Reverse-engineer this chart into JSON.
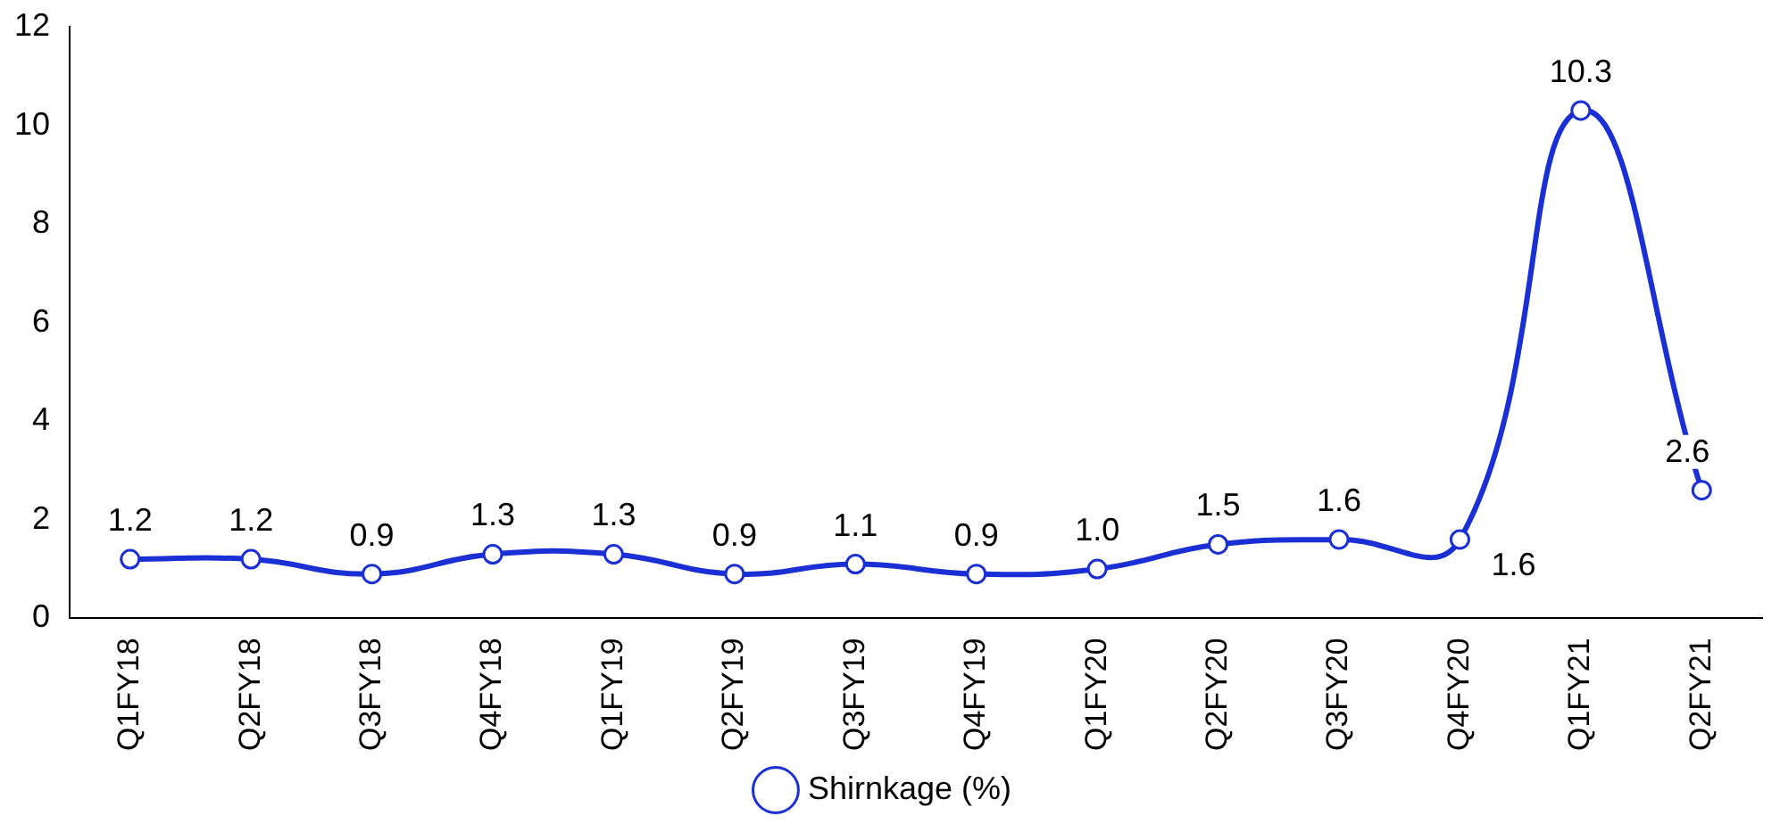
{
  "chart_data": {
    "type": "line",
    "categories": [
      "Q1FY18",
      "Q2FY18",
      "Q3FY18",
      "Q4FY18",
      "Q1FY19",
      "Q2FY19",
      "Q3FY19",
      "Q4FY19",
      "Q1FY20",
      "Q2FY20",
      "Q3FY20",
      "Q4FY20",
      "Q1FY21",
      "Q2FY21"
    ],
    "series": [
      {
        "name": "Shirnkage (%)",
        "color": "#1a2fd4",
        "values": [
          1.2,
          1.2,
          0.9,
          1.3,
          1.3,
          0.9,
          1.1,
          0.9,
          1.0,
          1.5,
          1.6,
          1.6,
          10.3,
          2.6
        ],
        "value_labels": [
          "1.2",
          "1.2",
          "0.9",
          "1.3",
          "1.3",
          "0.9",
          "1.1",
          "0.9",
          "1.0",
          "1.5",
          "1.6",
          "1.6",
          "10.3",
          "2.6"
        ]
      }
    ],
    "ylim": [
      0,
      12
    ],
    "yticks": [
      0,
      2,
      4,
      6,
      8,
      10,
      12
    ],
    "grid": false,
    "legend": "bottom",
    "marker": "circle",
    "line_style": "solid"
  }
}
